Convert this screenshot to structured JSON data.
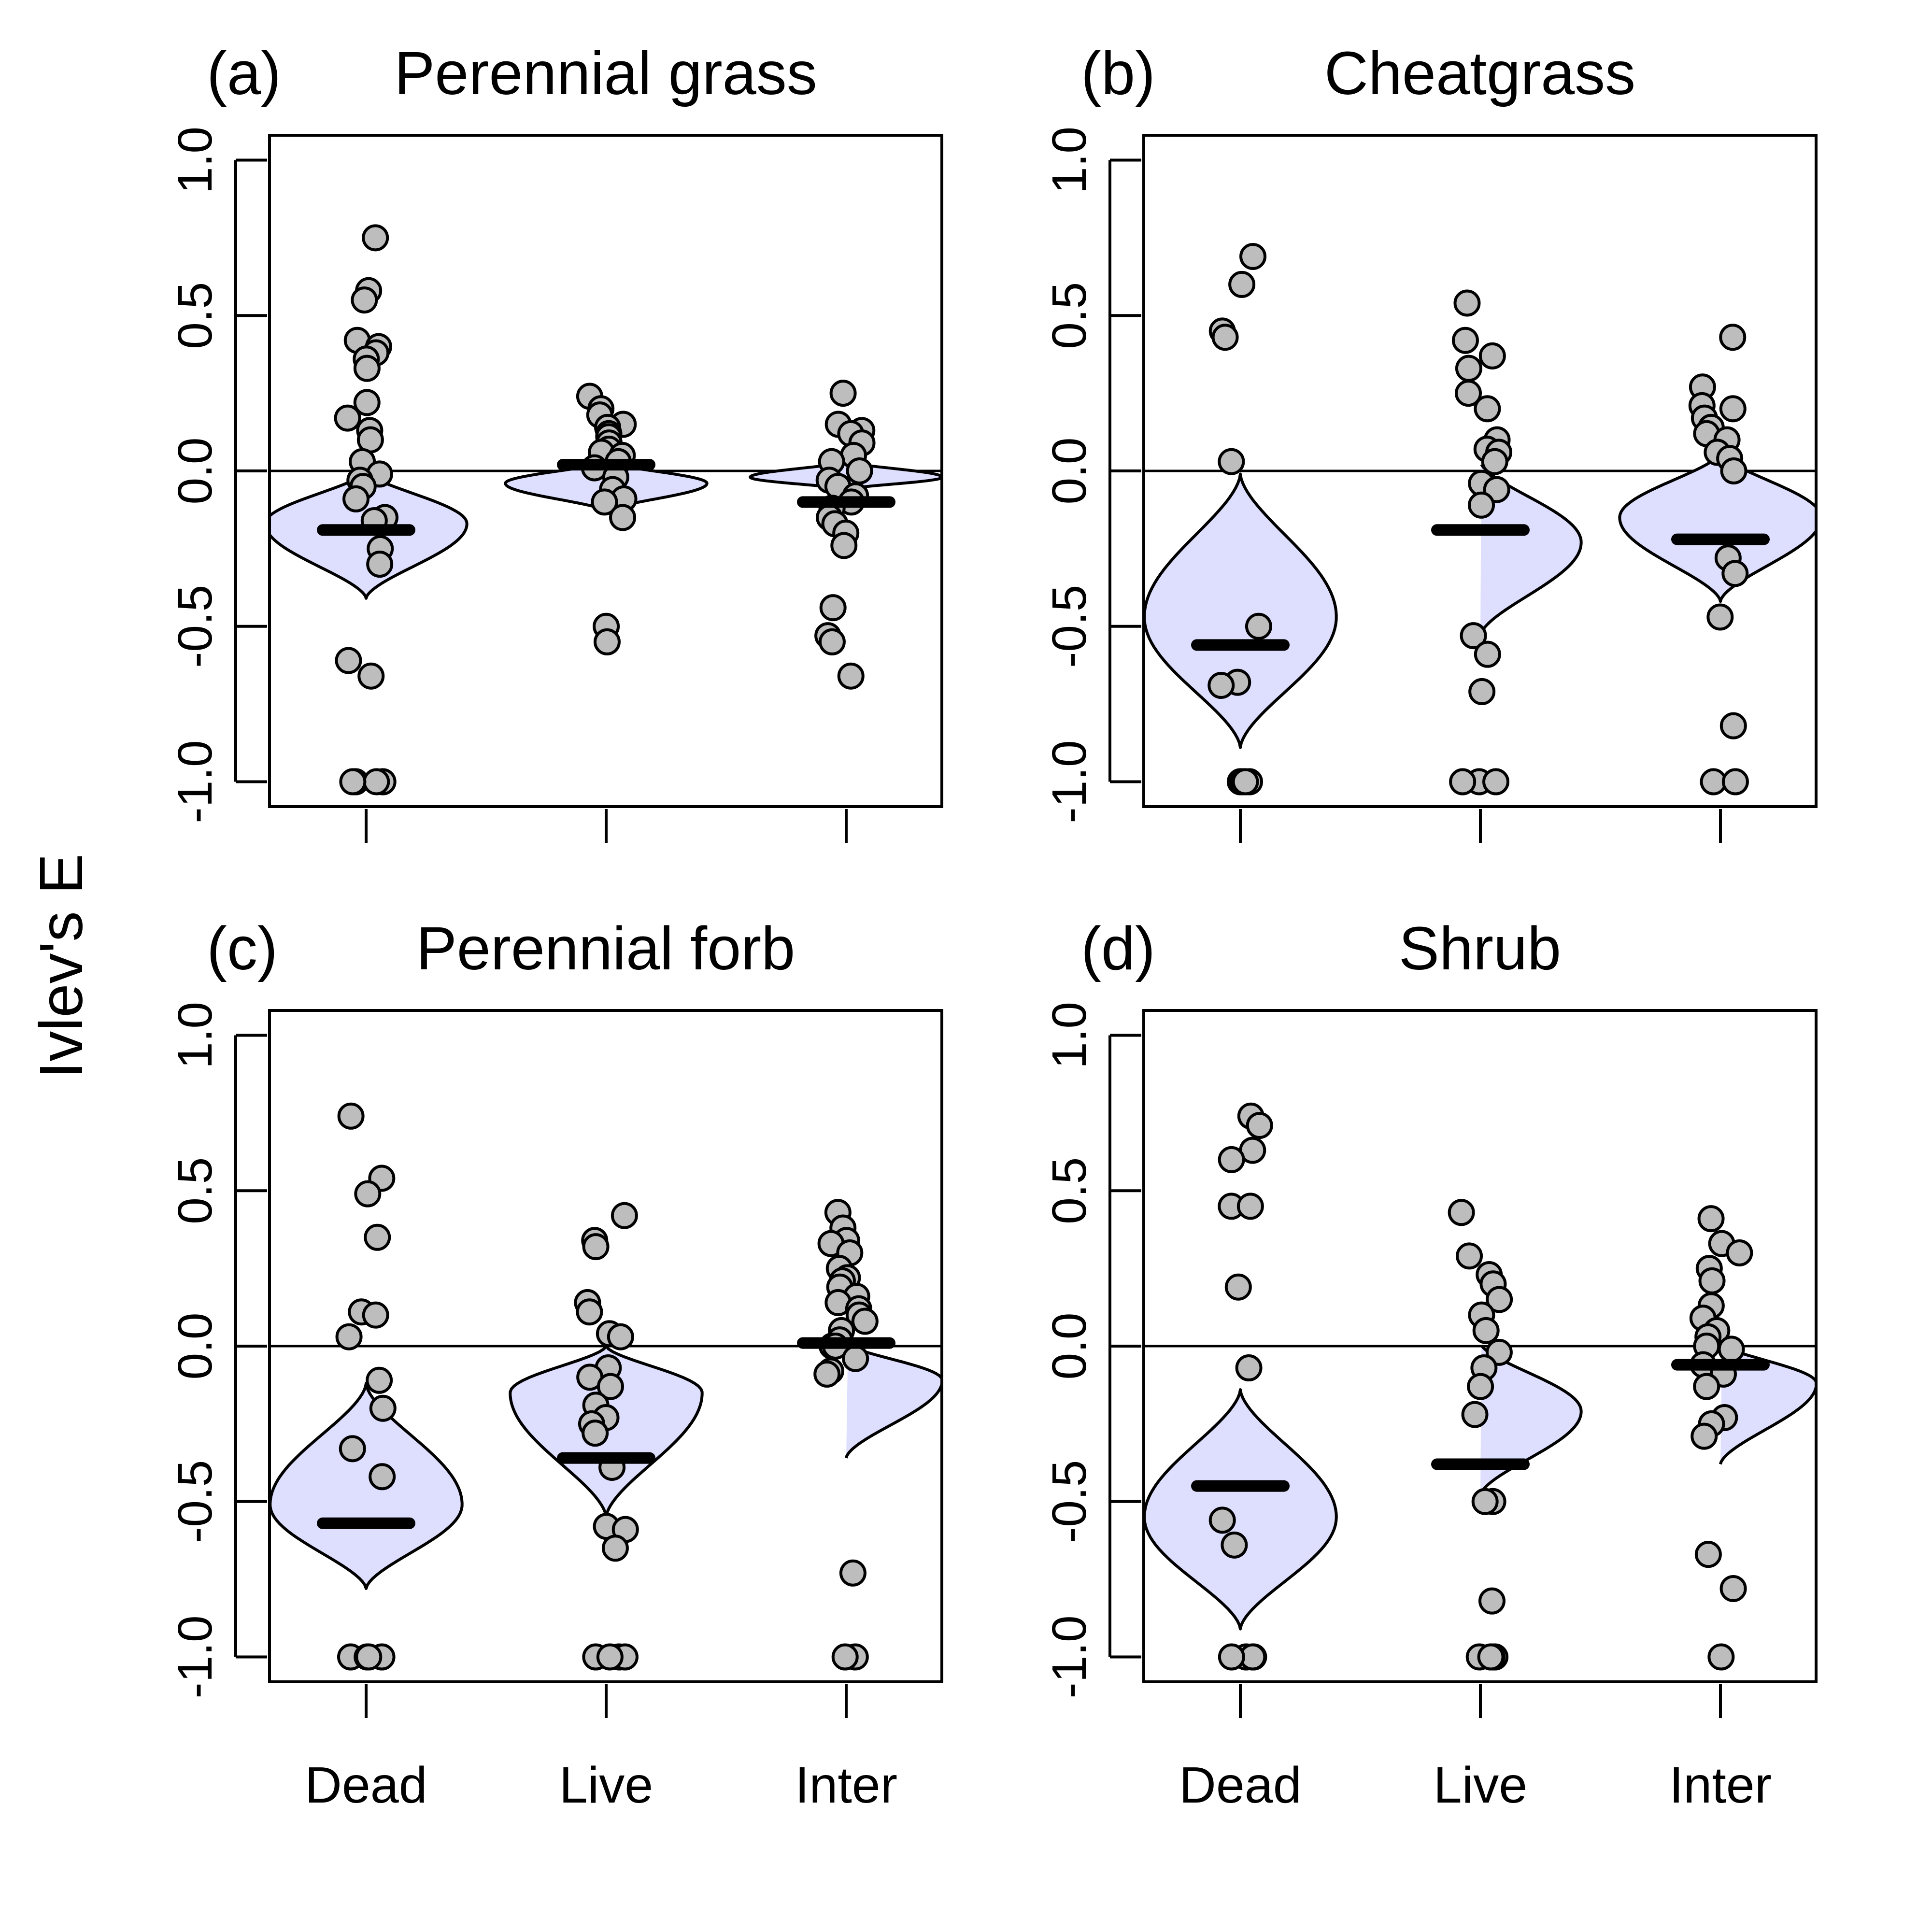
{
  "figure": {
    "ylabel": "Ivlev's E"
  },
  "chart_data": [
    {
      "type": "violin-strip",
      "letter": "(a)",
      "title": "Perennial grass",
      "categories": [
        "Dead",
        "Live",
        "Inter"
      ],
      "ylim": [
        -1.08,
        1.08
      ],
      "yticks": [
        "-1.0",
        "-0.5",
        "0.0",
        "0.5",
        "1.0"
      ],
      "reference_line": 0,
      "groups": [
        {
          "name": "Dead",
          "mean": -0.19,
          "violin": {
            "min": -0.41,
            "max": 0.0,
            "mode": -0.17,
            "width": 0.42
          },
          "points": [
            0.75,
            0.58,
            0.55,
            0.42,
            0.4,
            0.38,
            0.36,
            0.33,
            0.22,
            0.17,
            0.13,
            0.1,
            0.03,
            -0.01,
            -0.03,
            -0.05,
            -0.09,
            -0.15,
            -0.16,
            -0.25,
            -0.3,
            -0.61,
            -0.66,
            -1.0,
            -1.0,
            -1.0,
            -1.0
          ]
        },
        {
          "name": "Live",
          "mean": 0.02,
          "violin": {
            "min": -0.13,
            "max": 0.03,
            "mode": -0.04,
            "width": 0.42
          },
          "points": [
            0.24,
            0.2,
            0.18,
            0.15,
            0.14,
            0.12,
            0.11,
            0.09,
            0.07,
            0.06,
            0.05,
            0.03,
            0.01,
            -0.02,
            -0.06,
            -0.09,
            -0.1,
            -0.15,
            -0.5,
            -0.55
          ]
        },
        {
          "name": "Inter",
          "mean": -0.1,
          "violin": {
            "min": -0.06,
            "max": 0.03,
            "mode": -0.02,
            "width": 0.4
          },
          "points": [
            0.25,
            0.15,
            0.13,
            0.12,
            0.09,
            0.05,
            0.03,
            0.0,
            -0.03,
            -0.05,
            -0.08,
            -0.1,
            -0.12,
            -0.15,
            -0.17,
            -0.2,
            -0.24,
            -0.44,
            -0.53,
            -0.55,
            -0.66
          ]
        }
      ]
    },
    {
      "type": "violin-strip",
      "letter": "(b)",
      "title": "Cheatgrass",
      "categories": [
        "Dead",
        "Live",
        "Inter"
      ],
      "ylim": [
        -1.08,
        1.08
      ],
      "yticks": [
        "-1.0",
        "-0.5",
        "0.0",
        "0.5",
        "1.0"
      ],
      "reference_line": 0,
      "groups": [
        {
          "name": "Dead",
          "mean": -0.56,
          "violin": {
            "min": -0.89,
            "max": -0.01,
            "mode": -0.47,
            "width": 0.4
          },
          "points": [
            0.69,
            0.6,
            0.45,
            0.43,
            0.03,
            -0.5,
            -0.68,
            -0.69,
            -1.0,
            -1.0,
            -1.0,
            -1.0
          ]
        },
        {
          "name": "Live",
          "mean": -0.19,
          "violin": {
            "min": -0.53,
            "max": 0.03,
            "mode": -0.23,
            "width": 0.42
          },
          "points": [
            0.54,
            0.42,
            0.37,
            0.33,
            0.25,
            0.2,
            0.1,
            0.07,
            0.06,
            0.03,
            -0.04,
            -0.06,
            -0.11,
            -0.53,
            -0.59,
            -0.71,
            -1.0,
            -1.0,
            -1.0
          ]
        },
        {
          "name": "Inter",
          "mean": -0.22,
          "violin": {
            "min": -0.42,
            "max": 0.06,
            "mode": -0.15,
            "width": 0.42
          },
          "points": [
            0.43,
            0.27,
            0.21,
            0.2,
            0.17,
            0.14,
            0.12,
            0.1,
            0.06,
            0.04,
            0.0,
            -0.28,
            -0.33,
            -0.47,
            -0.82,
            -1.0,
            -1.0
          ]
        }
      ]
    },
    {
      "type": "violin-strip",
      "letter": "(c)",
      "title": "Perennial forb",
      "categories": [
        "Dead",
        "Live",
        "Inter"
      ],
      "ylim": [
        -1.08,
        1.08
      ],
      "yticks": [
        "-1.0",
        "-0.5",
        "0.0",
        "0.5",
        "1.0"
      ],
      "reference_line": 0,
      "groups": [
        {
          "name": "Dead",
          "mean": -0.57,
          "violin": {
            "min": -0.78,
            "max": -0.12,
            "mode": -0.51,
            "width": 0.4
          },
          "points": [
            0.74,
            0.54,
            0.49,
            0.35,
            0.11,
            0.1,
            0.03,
            -0.11,
            -0.2,
            -0.33,
            -0.42,
            -1.0,
            -1.0,
            -1.0,
            -1.0
          ]
        },
        {
          "name": "Live",
          "mean": -0.36,
          "violin": {
            "min": -0.55,
            "max": 0.0,
            "mode": -0.15,
            "width": 0.4
          },
          "points": [
            0.42,
            0.34,
            0.32,
            0.14,
            0.11,
            0.04,
            0.03,
            -0.07,
            -0.1,
            -0.13,
            -0.19,
            -0.23,
            -0.25,
            -0.28,
            -0.39,
            -0.58,
            -0.59,
            -0.65,
            -1.0,
            -1.0,
            -1.0,
            -1.0
          ]
        },
        {
          "name": "Inter",
          "mean": 0.01,
          "violin": {
            "min": -0.36,
            "max": 0.01,
            "mode": -0.11,
            "width": 0.4
          },
          "points": [
            0.43,
            0.38,
            0.34,
            0.33,
            0.3,
            0.25,
            0.22,
            0.21,
            0.19,
            0.16,
            0.14,
            0.12,
            0.1,
            0.08,
            0.05,
            0.02,
            0.0,
            0.0,
            -0.04,
            -0.08,
            -0.09,
            -0.73,
            -1.0,
            -1.0
          ]
        }
      ]
    },
    {
      "type": "violin-strip",
      "letter": "(d)",
      "title": "Shrub",
      "categories": [
        "Dead",
        "Live",
        "Inter"
      ],
      "ylim": [
        -1.08,
        1.08
      ],
      "yticks": [
        "-1.0",
        "-0.5",
        "0.0",
        "0.5",
        "1.0"
      ],
      "reference_line": 0,
      "groups": [
        {
          "name": "Dead",
          "mean": -0.45,
          "violin": {
            "min": -0.91,
            "max": -0.14,
            "mode": -0.55,
            "width": 0.4
          },
          "points": [
            0.74,
            0.71,
            0.63,
            0.6,
            0.45,
            0.45,
            0.19,
            -0.07,
            -0.56,
            -0.64,
            -1.0,
            -1.0,
            -1.0,
            -1.0
          ]
        },
        {
          "name": "Live",
          "mean": -0.38,
          "violin": {
            "min": -0.48,
            "max": 0.01,
            "mode": -0.21,
            "width": 0.42
          },
          "points": [
            0.43,
            0.29,
            0.23,
            0.2,
            0.15,
            0.1,
            0.05,
            -0.02,
            -0.07,
            -0.13,
            -0.22,
            -0.5,
            -0.5,
            -0.82,
            -1.0,
            -1.0,
            -1.0,
            -1.0
          ]
        },
        {
          "name": "Inter",
          "mean": -0.06,
          "violin": {
            "min": -0.38,
            "max": 0.01,
            "mode": -0.12,
            "width": 0.4
          },
          "points": [
            0.41,
            0.33,
            0.3,
            0.25,
            0.21,
            0.13,
            0.09,
            0.05,
            0.03,
            0.0,
            -0.01,
            -0.06,
            -0.09,
            -0.13,
            -0.23,
            -0.25,
            -0.29,
            -0.67,
            -0.78,
            -1.0
          ]
        }
      ]
    }
  ],
  "colors": {
    "violin_fill": "#dedfff",
    "point_fill": "#bdbdbd",
    "stroke": "#000000"
  }
}
